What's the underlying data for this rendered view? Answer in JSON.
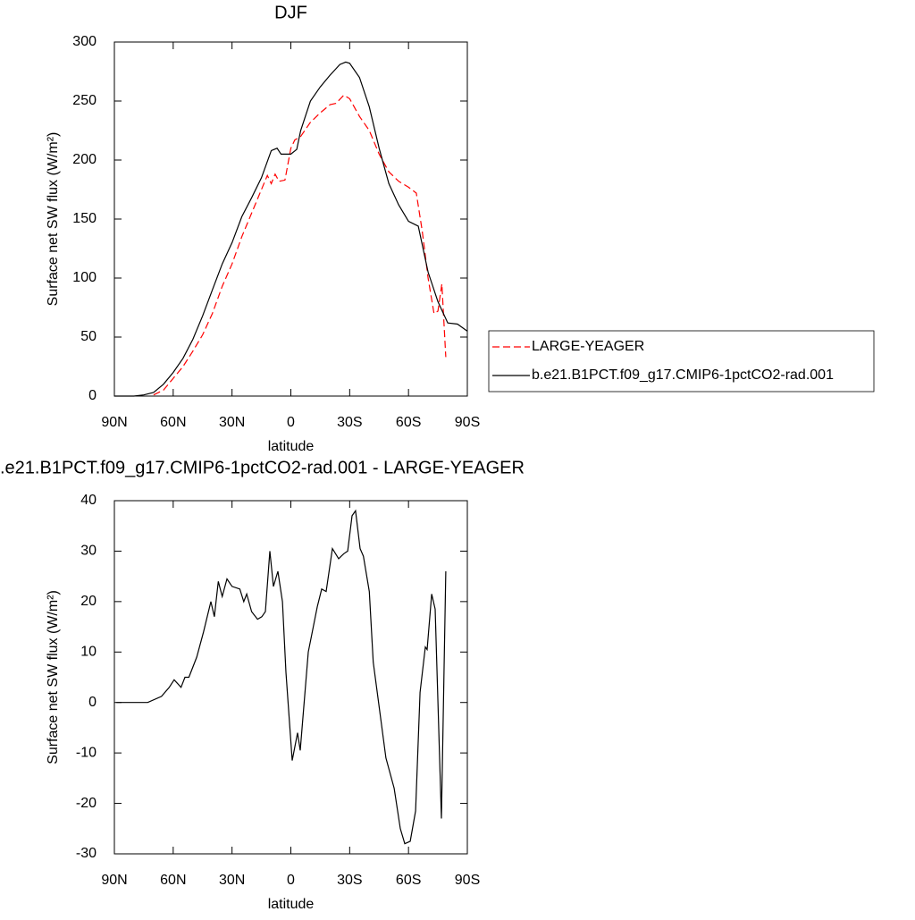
{
  "chart_data": [
    {
      "type": "line",
      "title": "DJF",
      "x_label": "latitude",
      "y_label": "Surface net SW flux (W/m²)",
      "xlim": [
        90,
        -90
      ],
      "xticks": [
        {
          "value": 90,
          "label": "90N"
        },
        {
          "value": 60,
          "label": "60N"
        },
        {
          "value": 30,
          "label": "30N"
        },
        0,
        {
          "value": -30,
          "label": "30S"
        },
        {
          "value": -60,
          "label": "60S"
        },
        {
          "value": -90,
          "label": "90S"
        }
      ],
      "ylim": [
        0,
        300
      ],
      "yticks": [
        0,
        50,
        100,
        150,
        200,
        250,
        300
      ],
      "legend": "right",
      "series": [
        {
          "name": "LARGE-YEAGER",
          "color": "#ff0000",
          "dashed": true,
          "x": [
            70,
            65,
            60,
            55,
            50,
            45,
            40,
            35,
            30,
            25,
            20,
            15,
            12,
            10,
            8,
            6,
            3,
            0,
            -2,
            -5,
            -10,
            -15,
            -20,
            -23,
            -27,
            -30,
            -35,
            -40,
            -45,
            -50,
            -55,
            -60,
            -64,
            -67,
            -70,
            -73,
            -75,
            -77,
            -79
          ],
          "values": [
            1,
            5,
            15,
            25,
            38,
            52,
            70,
            93,
            112,
            135,
            155,
            175,
            187,
            180,
            188,
            182,
            183,
            210,
            217,
            220,
            232,
            240,
            247,
            248,
            255,
            252,
            237,
            225,
            205,
            190,
            182,
            177,
            172,
            140,
            100,
            70,
            72,
            95,
            33
          ]
        },
        {
          "name": "b.e21.B1PCT.f09_g17.CMIP6-1pctCO2-rad.001",
          "color": "#000000",
          "dashed": false,
          "x": [
            90,
            85,
            80,
            75,
            70,
            65,
            60,
            55,
            50,
            45,
            40,
            35,
            30,
            25,
            20,
            15,
            10,
            7,
            5,
            0,
            -3,
            -5,
            -10,
            -15,
            -20,
            -25,
            -28,
            -30,
            -35,
            -40,
            -45,
            -50,
            -55,
            -60,
            -65,
            -70,
            -75,
            -80,
            -85,
            -90
          ],
          "values": [
            0,
            0,
            0,
            1,
            3,
            10,
            20,
            32,
            48,
            68,
            90,
            112,
            130,
            152,
            168,
            185,
            208,
            210,
            205,
            205,
            209,
            225,
            250,
            262,
            272,
            281,
            283,
            282,
            270,
            245,
            210,
            180,
            162,
            148,
            144,
            105,
            80,
            62,
            61,
            55
          ]
        }
      ]
    },
    {
      "type": "line",
      "title": ".e21.B1PCT.f09_g17.CMIP6-1pctCO2-rad.001 - LARGE-YEAGER",
      "x_label": "latitude",
      "y_label": "Surface net SW flux (W/m²)",
      "xlim": [
        90,
        -90
      ],
      "xticks": [
        {
          "value": 90,
          "label": "90N"
        },
        {
          "value": 60,
          "label": "60N"
        },
        {
          "value": 30,
          "label": "30N"
        },
        0,
        {
          "value": -30,
          "label": "30S"
        },
        {
          "value": -60,
          "label": "60S"
        },
        {
          "value": -90,
          "label": "90S"
        }
      ],
      "ylim": [
        -30,
        40
      ],
      "yticks": [
        -30,
        -20,
        -10,
        0,
        10,
        20,
        30,
        40
      ],
      "series": [
        {
          "color": "#000000",
          "dashed": false,
          "x": [
            89,
            73,
            66,
            62,
            59.5,
            56,
            54,
            52,
            48,
            44.5,
            40.8,
            39,
            37,
            35,
            32.6,
            30,
            26,
            24,
            22.5,
            20,
            17,
            14.8,
            13,
            10.7,
            8.9,
            6.6,
            4.3,
            2.5,
            -0.7,
            -3.4,
            -4.8,
            -8.9,
            -13.5,
            -15.7,
            -18,
            -21.2,
            -24.4,
            -27,
            -29,
            -31.2,
            -33,
            -35.3,
            -37,
            -40,
            -42,
            -48.5,
            -52.7,
            -55.8,
            -58.1,
            -60.9,
            -63.6,
            -65.9,
            -68.6,
            -69.5,
            -71.8,
            -73.6,
            -76.8,
            -79
          ],
          "values": [
            0,
            0,
            1.2,
            3,
            4.5,
            3,
            5,
            5,
            9,
            14,
            20,
            17,
            24,
            21,
            24.5,
            23,
            22.5,
            20,
            21.5,
            18,
            16.5,
            17,
            18,
            30,
            23,
            26,
            20,
            6,
            -11.5,
            -6,
            -9.5,
            10,
            19,
            22.5,
            22,
            30.5,
            28.5,
            29.5,
            30,
            37,
            38,
            30.5,
            29,
            22,
            8,
            -11,
            -17,
            -25,
            -28,
            -27.5,
            -21.5,
            2,
            11,
            10.5,
            21.5,
            18.5,
            -23,
            26
          ]
        }
      ]
    }
  ]
}
